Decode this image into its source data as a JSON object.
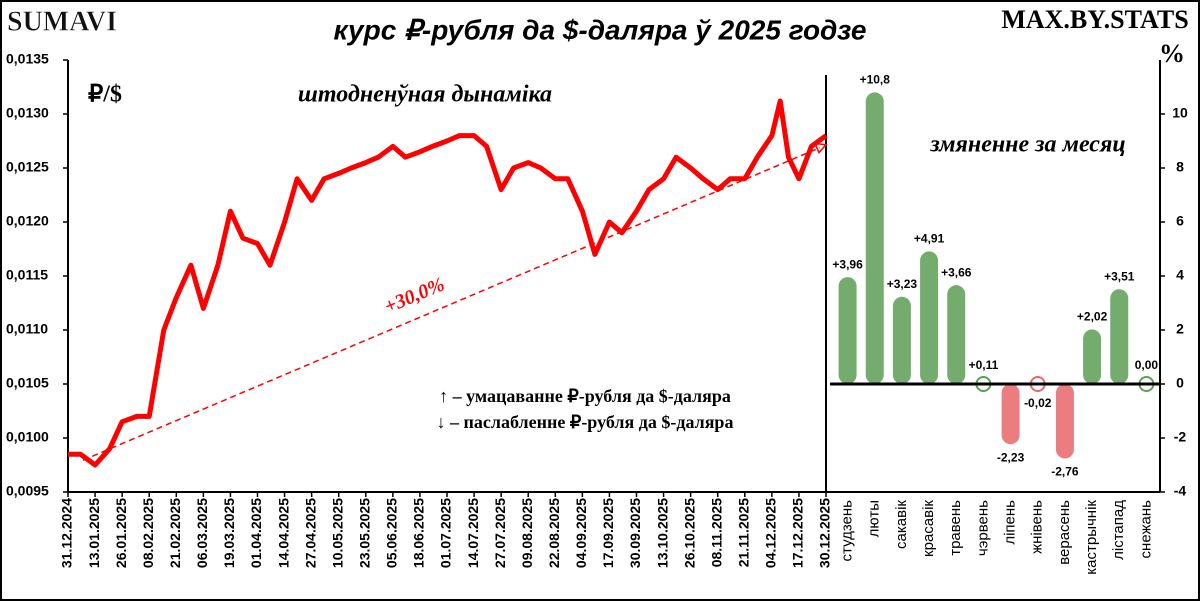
{
  "header": {
    "left_logo": "SUMAVI",
    "title": "курс ₽-рубля да $-даляра ў 2025 годзе",
    "right_logo": "MAX.BY.STATS"
  },
  "chart_data": [
    {
      "type": "line",
      "subtitle": "штодненўная дынаміка",
      "y_label": "₽/$",
      "color": "#ff0000",
      "x": [
        "31.12.2024",
        "06.01.2025",
        "13.01.2025",
        "20.01.2025",
        "26.01.2025",
        "02.02.2025",
        "08.02.2025",
        "15.02.2025",
        "21.02.2025",
        "28.02.2025",
        "06.03.2025",
        "13.03.2025",
        "19.03.2025",
        "25.03.2025",
        "01.04.2025",
        "07.04.2025",
        "14.04.2025",
        "20.04.2025",
        "27.04.2025",
        "03.05.2025",
        "10.05.2025",
        "16.05.2025",
        "23.05.2025",
        "29.05.2025",
        "05.06.2025",
        "11.06.2025",
        "18.06.2025",
        "24.06.2025",
        "01.07.2025",
        "07.07.2025",
        "14.07.2025",
        "20.07.2025",
        "27.07.2025",
        "02.08.2025",
        "09.08.2025",
        "15.08.2025",
        "22.08.2025",
        "28.08.2025",
        "04.09.2025",
        "10.09.2025",
        "17.09.2025",
        "23.09.2025",
        "30.09.2025",
        "06.10.2025",
        "13.10.2025",
        "19.10.2025",
        "26.10.2025",
        "01.11.2025",
        "08.11.2025",
        "14.11.2025",
        "21.11.2025",
        "27.11.2025",
        "04.12.2025",
        "08.12.2025",
        "12.12.2025",
        "17.12.2025",
        "23.12.2025",
        "30.12.2025"
      ],
      "values": [
        0.00985,
        0.00985,
        0.00975,
        0.0099,
        0.01015,
        0.0102,
        0.0102,
        0.011,
        0.0113,
        0.0116,
        0.0112,
        0.0116,
        0.0121,
        0.01185,
        0.0118,
        0.0116,
        0.012,
        0.0124,
        0.0122,
        0.0124,
        0.01245,
        0.0125,
        0.01255,
        0.0126,
        0.0127,
        0.0126,
        0.01265,
        0.0127,
        0.01275,
        0.0128,
        0.0128,
        0.0127,
        0.0123,
        0.0125,
        0.01255,
        0.0125,
        0.0124,
        0.0124,
        0.0121,
        0.0117,
        0.012,
        0.0119,
        0.0121,
        0.0123,
        0.0124,
        0.0126,
        0.0125,
        0.0124,
        0.0123,
        0.0124,
        0.0124,
        0.0126,
        0.0128,
        0.01312,
        0.0126,
        0.0124,
        0.0127,
        0.0128
      ],
      "xlim": [
        "31.12.2024",
        "30.12.2025"
      ],
      "xticks": [
        "31.12.2024",
        "13.01.2025",
        "26.01.2025",
        "08.02.2025",
        "21.02.2025",
        "06.03.2025",
        "19.03.2025",
        "01.04.2025",
        "14.04.2025",
        "27.04.2025",
        "10.05.2025",
        "23.05.2025",
        "05.06.2025",
        "18.06.2025",
        "01.07.2025",
        "14.07.2025",
        "27.07.2025",
        "09.08.2025",
        "22.08.2025",
        "04.09.2025",
        "17.09.2025",
        "30.09.2025",
        "13.10.2025",
        "26.10.2025",
        "08.11.2025",
        "21.11.2025",
        "04.12.2025",
        "17.12.2025",
        "30.12.2025"
      ],
      "ylim": [
        0.0095,
        0.0135
      ],
      "yticks": [
        {
          "value": 0.0095,
          "label": "0,0095"
        },
        {
          "value": 0.01,
          "label": "0,0100"
        },
        {
          "value": 0.0105,
          "label": "0,0105"
        },
        {
          "value": 0.011,
          "label": "0,0110"
        },
        {
          "value": 0.0115,
          "label": "0,0115"
        },
        {
          "value": 0.012,
          "label": "0,0120"
        },
        {
          "value": 0.0125,
          "label": "0,0125"
        },
        {
          "value": 0.013,
          "label": "0,0130"
        },
        {
          "value": 0.0135,
          "label": "0,0135"
        }
      ],
      "trend_label": "+30,0%",
      "notes": [
        "↑ – умацаванне ₽-рубля да $-даляра",
        "↓ – паслабленне ₽-рубля да $-даляра"
      ]
    },
    {
      "type": "bar",
      "subtitle": "змяненне за месяц",
      "y_label": "%",
      "categories": [
        "студзень",
        "люты",
        "сакавік",
        "красавік",
        "травень",
        "чэрвень",
        "ліпень",
        "жнівень",
        "верасень",
        "кастрычнік",
        "лістапад",
        "снежань"
      ],
      "values": [
        3.96,
        10.8,
        3.23,
        4.91,
        3.66,
        0.11,
        -2.23,
        -0.02,
        -2.76,
        2.02,
        3.51,
        0.0
      ],
      "value_labels": [
        "+3,96",
        "+10,8",
        "+3,23",
        "+4,91",
        "+3,66",
        "+0,11",
        "-2,23",
        "-0,02",
        "-2,76",
        "+2,02",
        "+3,51",
        "0,00"
      ],
      "colors": {
        "positive": "#5c9e55",
        "negative": "#e8666b"
      },
      "ylim": [
        -4,
        12
      ],
      "yticks": [
        -4,
        -2,
        0,
        2,
        4,
        6,
        8,
        10
      ]
    }
  ]
}
